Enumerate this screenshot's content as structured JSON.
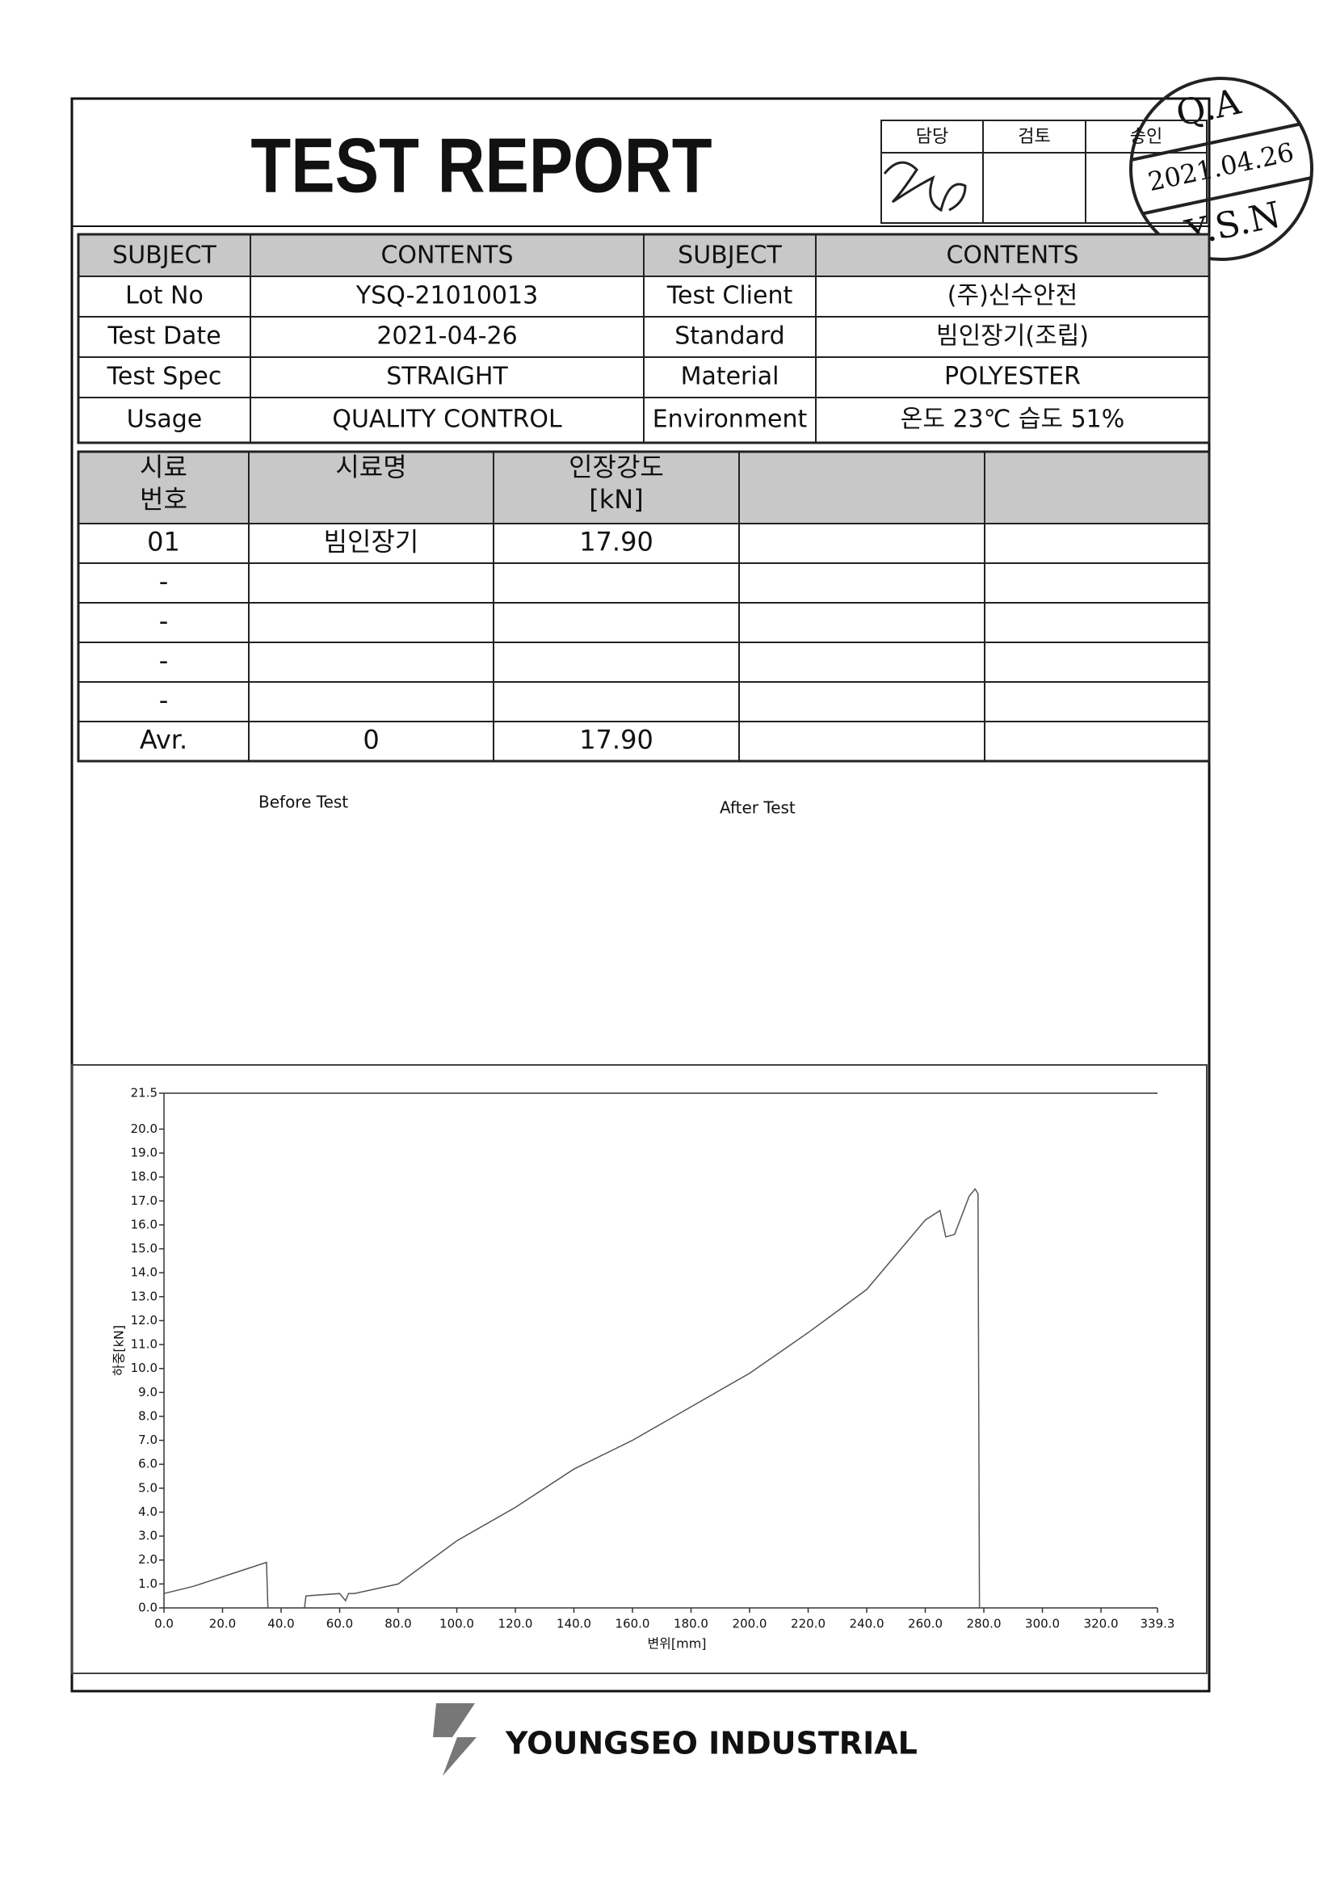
{
  "header": {
    "title": "TEST REPORT",
    "approval": [
      "담당",
      "검토",
      "승인"
    ]
  },
  "stamp": {
    "top": "Q.A",
    "date": "2021.04.26",
    "bottom": "Y.S.N"
  },
  "info_table": {
    "header": [
      "SUBJECT",
      "CONTENTS",
      "SUBJECT",
      "CONTENTS"
    ],
    "rows": [
      [
        "Lot No",
        "YSQ-21010013",
        "Test Client",
        "(주)신수안전"
      ],
      [
        "Test Date",
        "2021-04-26",
        "Standard",
        "빔인장기(조립)"
      ],
      [
        "Test Spec",
        "STRAIGHT",
        "Material",
        "POLYESTER"
      ],
      [
        "Usage",
        "QUALITY CONTROL",
        "Environment",
        "온도 23℃  습도 51%"
      ]
    ]
  },
  "sample_table": {
    "header": [
      [
        "시료",
        "번호"
      ],
      [
        "시료명"
      ],
      [
        "인장강도",
        "[kN]"
      ]
    ],
    "rows": [
      [
        "01",
        "빔인장기",
        "17.90"
      ],
      [
        "-"
      ],
      [
        "-"
      ],
      [
        "-"
      ],
      [
        "-"
      ],
      [
        "Avr.",
        "0",
        "17.90"
      ]
    ]
  },
  "photos": {
    "before": "Before Test",
    "after": "After Test"
  },
  "chart_data": {
    "type": "line",
    "xlabel": "변위[mm]",
    "ylabel": "하중[kN]",
    "color": "#555555",
    "x": [
      0,
      10,
      20,
      30,
      35,
      35.5,
      48,
      48.5,
      60,
      62,
      63,
      65,
      80,
      100,
      120,
      140,
      160,
      180,
      200,
      220,
      240,
      260,
      265,
      267,
      270,
      275,
      277,
      278,
      278.5,
      283
    ],
    "values": [
      0.6,
      0.9,
      1.3,
      1.7,
      1.9,
      0,
      0,
      0.5,
      0.6,
      0.3,
      0.6,
      0.6,
      1.0,
      2.8,
      4.2,
      5.8,
      7.0,
      8.4,
      9.8,
      11.5,
      13.3,
      16.2,
      16.6,
      15.5,
      15.6,
      17.2,
      17.5,
      17.3,
      0,
      0
    ],
    "xlim": [
      0,
      339.3
    ],
    "ylim": [
      0,
      21.5
    ],
    "xticks": [
      {
        "value": 0,
        "label": "0.0"
      },
      {
        "value": 20,
        "label": "20.0"
      },
      {
        "value": 40,
        "label": "40.0"
      },
      {
        "value": 60,
        "label": "60.0"
      },
      {
        "value": 80,
        "label": "80.0"
      },
      {
        "value": 100,
        "label": "100.0"
      },
      {
        "value": 120,
        "label": "120.0"
      },
      {
        "value": 140,
        "label": "140.0"
      },
      {
        "value": 160,
        "label": "160.0"
      },
      {
        "value": 180,
        "label": "180.0"
      },
      {
        "value": 200,
        "label": "200.0"
      },
      {
        "value": 220,
        "label": "220.0"
      },
      {
        "value": 240,
        "label": "240.0"
      },
      {
        "value": 260,
        "label": "260.0"
      },
      {
        "value": 280,
        "label": "280.0"
      },
      {
        "value": 300,
        "label": "300.0"
      },
      {
        "value": 320,
        "label": "320.0"
      },
      339.3
    ],
    "yticks": [
      {
        "value": 0,
        "label": "0.0"
      },
      {
        "value": 1,
        "label": "1.0"
      },
      {
        "value": 2,
        "label": "2.0"
      },
      {
        "value": 3,
        "label": "3.0"
      },
      {
        "value": 4,
        "label": "4.0"
      },
      {
        "value": 5,
        "label": "5.0"
      },
      {
        "value": 6,
        "label": "6.0"
      },
      {
        "value": 7,
        "label": "7.0"
      },
      {
        "value": 8,
        "label": "8.0"
      },
      {
        "value": 9,
        "label": "9.0"
      },
      {
        "value": 10,
        "label": "10.0"
      },
      {
        "value": 11,
        "label": "11.0"
      },
      {
        "value": 12,
        "label": "12.0"
      },
      {
        "value": 13,
        "label": "13.0"
      },
      {
        "value": 14,
        "label": "14.0"
      },
      {
        "value": 15,
        "label": "15.0"
      },
      {
        "value": 16,
        "label": "16.0"
      },
      {
        "value": 17,
        "label": "17.0"
      },
      {
        "value": 18,
        "label": "18.0"
      },
      {
        "value": 19,
        "label": "19.0"
      },
      {
        "value": 20,
        "label": "20.0"
      },
      21.5
    ]
  },
  "footer": {
    "company": "YOUNGSEO INDUSTRIAL"
  }
}
